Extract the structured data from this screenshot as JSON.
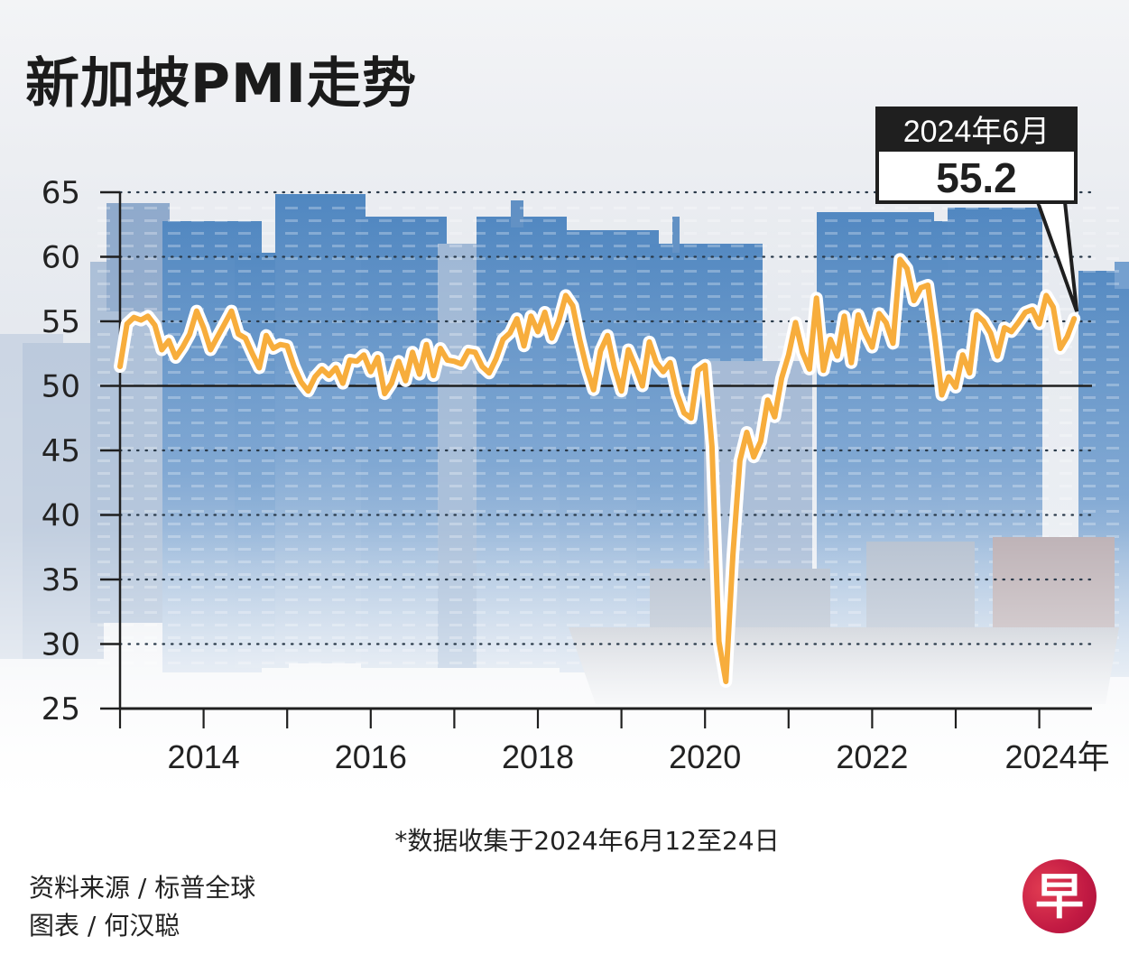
{
  "header": {
    "title": "新加坡PMI走势"
  },
  "callout": {
    "period": "2024年6月",
    "value": "55.2"
  },
  "footer": {
    "note": "*数据收集于2024年6月12至24日",
    "source": "资料来源 / 标普全球",
    "chart_by": "图表 / 何汉聪",
    "logo_glyph": "早"
  },
  "colors": {
    "line": "#f7ad3c",
    "line_halo": "#ffffff",
    "axis": "#1f1f1f",
    "logo": "#c8203f"
  },
  "chart_data": {
    "type": "line",
    "title": "新加坡PMI走势",
    "xlabel": "",
    "ylabel": "",
    "x_unit": "年",
    "ylim": [
      25,
      65
    ],
    "yticks": [
      25,
      30,
      35,
      40,
      45,
      50,
      55,
      60,
      65
    ],
    "xlim": [
      "2013-01",
      "2024-06"
    ],
    "x_tick_years": [
      2013,
      2014,
      2015,
      2016,
      2017,
      2018,
      2019,
      2020,
      2021,
      2022,
      2023,
      2024
    ],
    "x_tick_labels": [
      "2014",
      "2016",
      "2018",
      "2020",
      "2022",
      "2024年"
    ],
    "x_tick_label_years": [
      2014,
      2016,
      2018,
      2020,
      2022,
      2024
    ],
    "reference_line": 50,
    "grid": "dotted horizontal",
    "annotation": {
      "period": "2024年6月",
      "value": 55.2
    },
    "series": [
      {
        "name": "PMI",
        "start": "2013-01",
        "frequency": "monthly",
        "values": [
          51.5,
          54.8,
          55.3,
          55.1,
          55.4,
          54.7,
          52.8,
          53.5,
          52.2,
          53.0,
          54.0,
          55.8,
          54.5,
          52.8,
          53.8,
          54.8,
          55.8,
          54.0,
          53.7,
          52.5,
          51.4,
          53.9,
          52.9,
          53.2,
          53.1,
          51.5,
          50.3,
          49.6,
          50.7,
          51.3,
          50.8,
          51.4,
          50.2,
          52.0,
          51.9,
          52.4,
          51.1,
          52.2,
          49.4,
          50.2,
          51.9,
          50.4,
          52.6,
          50.9,
          53.2,
          50.8,
          52.9,
          52.0,
          51.9,
          51.7,
          52.7,
          52.6,
          51.5,
          51.0,
          52.1,
          53.6,
          54.1,
          55.2,
          53.1,
          55.4,
          54.2,
          55.7,
          53.7,
          55.0,
          57.0,
          56.2,
          53.6,
          51.4,
          49.7,
          52.7,
          53.9,
          51.4,
          49.6,
          52.8,
          51.5,
          50.0,
          53.4,
          51.8,
          51.1,
          51.8,
          49.4,
          47.9,
          47.5,
          51.2,
          51.6,
          45.3,
          30.2,
          27.1,
          36.9,
          44.2,
          46.4,
          44.5,
          45.7,
          48.9,
          47.6,
          50.6,
          52.4,
          54.9,
          52.6,
          51.3,
          56.8,
          51.2,
          53.6,
          52.3,
          55.4,
          51.8,
          55.5,
          54.1,
          53.0,
          55.6,
          54.9,
          53.3,
          59.8,
          59.1,
          56.6,
          57.6,
          57.8,
          53.9,
          49.3,
          50.7,
          49.9,
          52.4,
          51.0,
          55.5,
          55.0,
          54.1,
          52.3,
          54.5,
          54.2,
          54.9,
          55.7,
          55.9,
          54.8,
          57.0,
          56.1,
          52.9,
          53.8,
          55.2
        ]
      }
    ]
  }
}
